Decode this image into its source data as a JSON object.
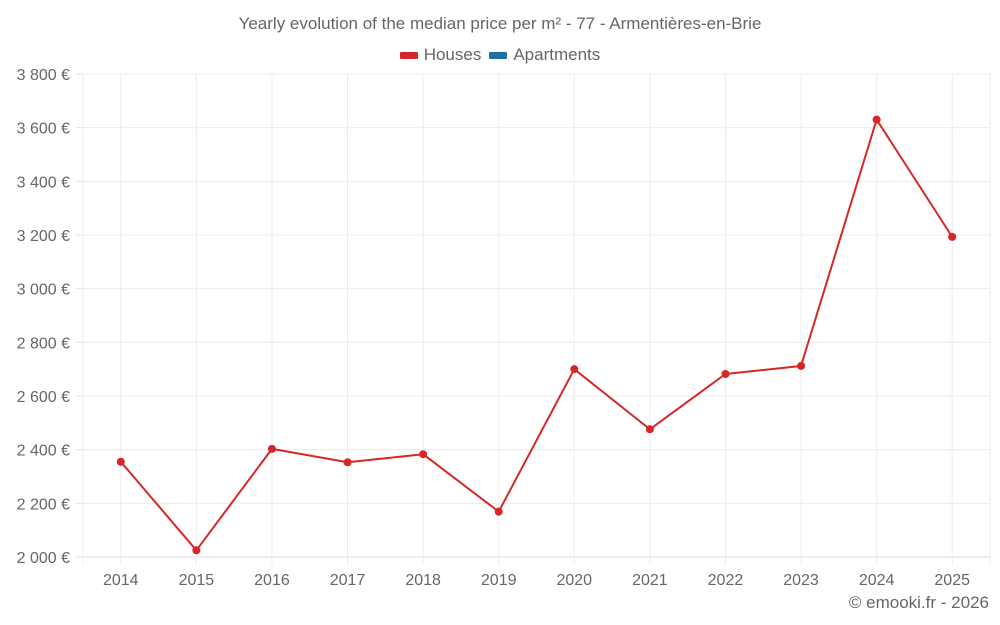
{
  "chart_data": {
    "type": "line",
    "title": "Yearly evolution of the median price per m² - 77 - Armentières-en-Brie",
    "xlabel": "",
    "ylabel": "",
    "categories": [
      "2014",
      "2015",
      "2016",
      "2017",
      "2018",
      "2019",
      "2020",
      "2021",
      "2022",
      "2023",
      "2024",
      "2025"
    ],
    "series": [
      {
        "name": "Houses",
        "color": "#d62728",
        "values": [
          2355,
          2025,
          2403,
          2353,
          2383,
          2169,
          2700,
          2476,
          2682,
          2712,
          3630,
          3193
        ]
      },
      {
        "name": "Apartments",
        "color": "#1f6fa3",
        "values": []
      }
    ],
    "ylim": [
      2000,
      3800
    ],
    "yticks": [
      2000,
      2200,
      2400,
      2600,
      2800,
      3000,
      3200,
      3400,
      3600,
      3800
    ],
    "ytick_labels": [
      "2 000 €",
      "2 200 €",
      "2 400 €",
      "2 600 €",
      "2 800 €",
      "3 000 €",
      "3 200 €",
      "3 400 €",
      "3 600 €",
      "3 800 €"
    ],
    "grid": true,
    "legend_position": "top"
  },
  "legend": {
    "items": [
      {
        "label": "Houses",
        "color": "#d62728"
      },
      {
        "label": "Apartments",
        "color": "#1f6fa3"
      }
    ]
  },
  "credit": "© emooki.fr - 2026"
}
